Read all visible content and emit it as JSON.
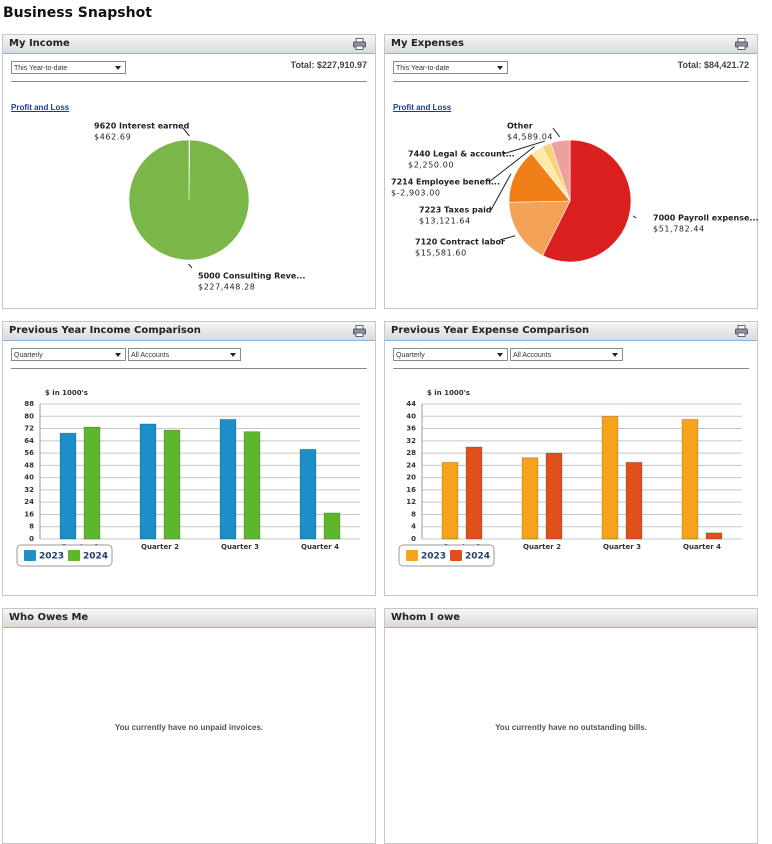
{
  "title": "Business Snapshot",
  "panels": [
    {
      "title": "My Income",
      "period": "This Year-to-date",
      "total": "Total: $227,910.97",
      "link": "Profit and Loss"
    },
    {
      "title": "My Expenses",
      "period": "This Year-to-date",
      "total": "Total: $84,421.72",
      "link": "Profit and Loss"
    },
    {
      "title": "Previous Year Income Comparison",
      "interval": "Quarterly",
      "accounts": "All Accounts"
    },
    {
      "title": "Previous Year Expense Comparison",
      "interval": "Quarterly",
      "accounts": "All Accounts"
    },
    {
      "title": "Who Owes Me",
      "message": "You currently have no unpaid invoices."
    },
    {
      "title": "Whom I owe",
      "message": "You currently have no outstanding bills."
    }
  ],
  "chart_data": [
    {
      "type": "pie",
      "categories": [
        "9620 Interest earned",
        "5000 Consulting Reve..."
      ],
      "values": [
        462.69,
        227448.28
      ],
      "value_labels": [
        "$462.69",
        "$227,448.28"
      ],
      "colors": [
        "#7ab648",
        "#7ab648"
      ]
    },
    {
      "type": "pie",
      "categories": [
        "7000 Payroll expense...",
        "7120 Contract labor",
        "7223 Taxes paid",
        "7214 Employee benefi...",
        "7440 Legal & account...",
        "Other"
      ],
      "values": [
        51782.44,
        15581.6,
        13121.64,
        -2903.0,
        2250.0,
        4589.04
      ],
      "value_labels": [
        "$51,782.44",
        "$15,581.60",
        "$13,121.64",
        "$-2,903.00",
        "$2,250.00",
        "$4,589.04"
      ],
      "colors": [
        "#d9201f",
        "#f4a356",
        "#f07f17",
        "#fde9a8",
        "#fbd27c",
        "#ef9f9c"
      ]
    },
    {
      "type": "bar",
      "axis_label": "$ in 1000's",
      "categories": [
        "Quarter 1",
        "Quarter 2",
        "Quarter 3",
        "Quarter 4"
      ],
      "series": [
        {
          "name": "2023",
          "color": "#1b8fc6",
          "values": [
            69,
            75,
            78,
            58.5
          ]
        },
        {
          "name": "2024",
          "color": "#5cb82a",
          "values": [
            73,
            71,
            70,
            17
          ]
        }
      ],
      "ylim": [
        0,
        88
      ],
      "yticks": [
        0,
        8,
        16,
        24,
        32,
        40,
        48,
        56,
        64,
        72,
        80,
        88
      ],
      "grid": true
    },
    {
      "type": "bar",
      "axis_label": "$ in 1000's",
      "categories": [
        "Quarter 1",
        "Quarter 2",
        "Quarter 3",
        "Quarter 4"
      ],
      "series": [
        {
          "name": "2023",
          "color": "#f6a21b",
          "values": [
            25,
            26.5,
            40,
            39
          ]
        },
        {
          "name": "2024",
          "color": "#e0501d",
          "values": [
            30,
            28,
            25,
            2
          ]
        }
      ],
      "ylim": [
        0,
        44
      ],
      "yticks": [
        0,
        4,
        8,
        12,
        16,
        20,
        24,
        28,
        32,
        36,
        40,
        44
      ],
      "grid": true
    }
  ]
}
